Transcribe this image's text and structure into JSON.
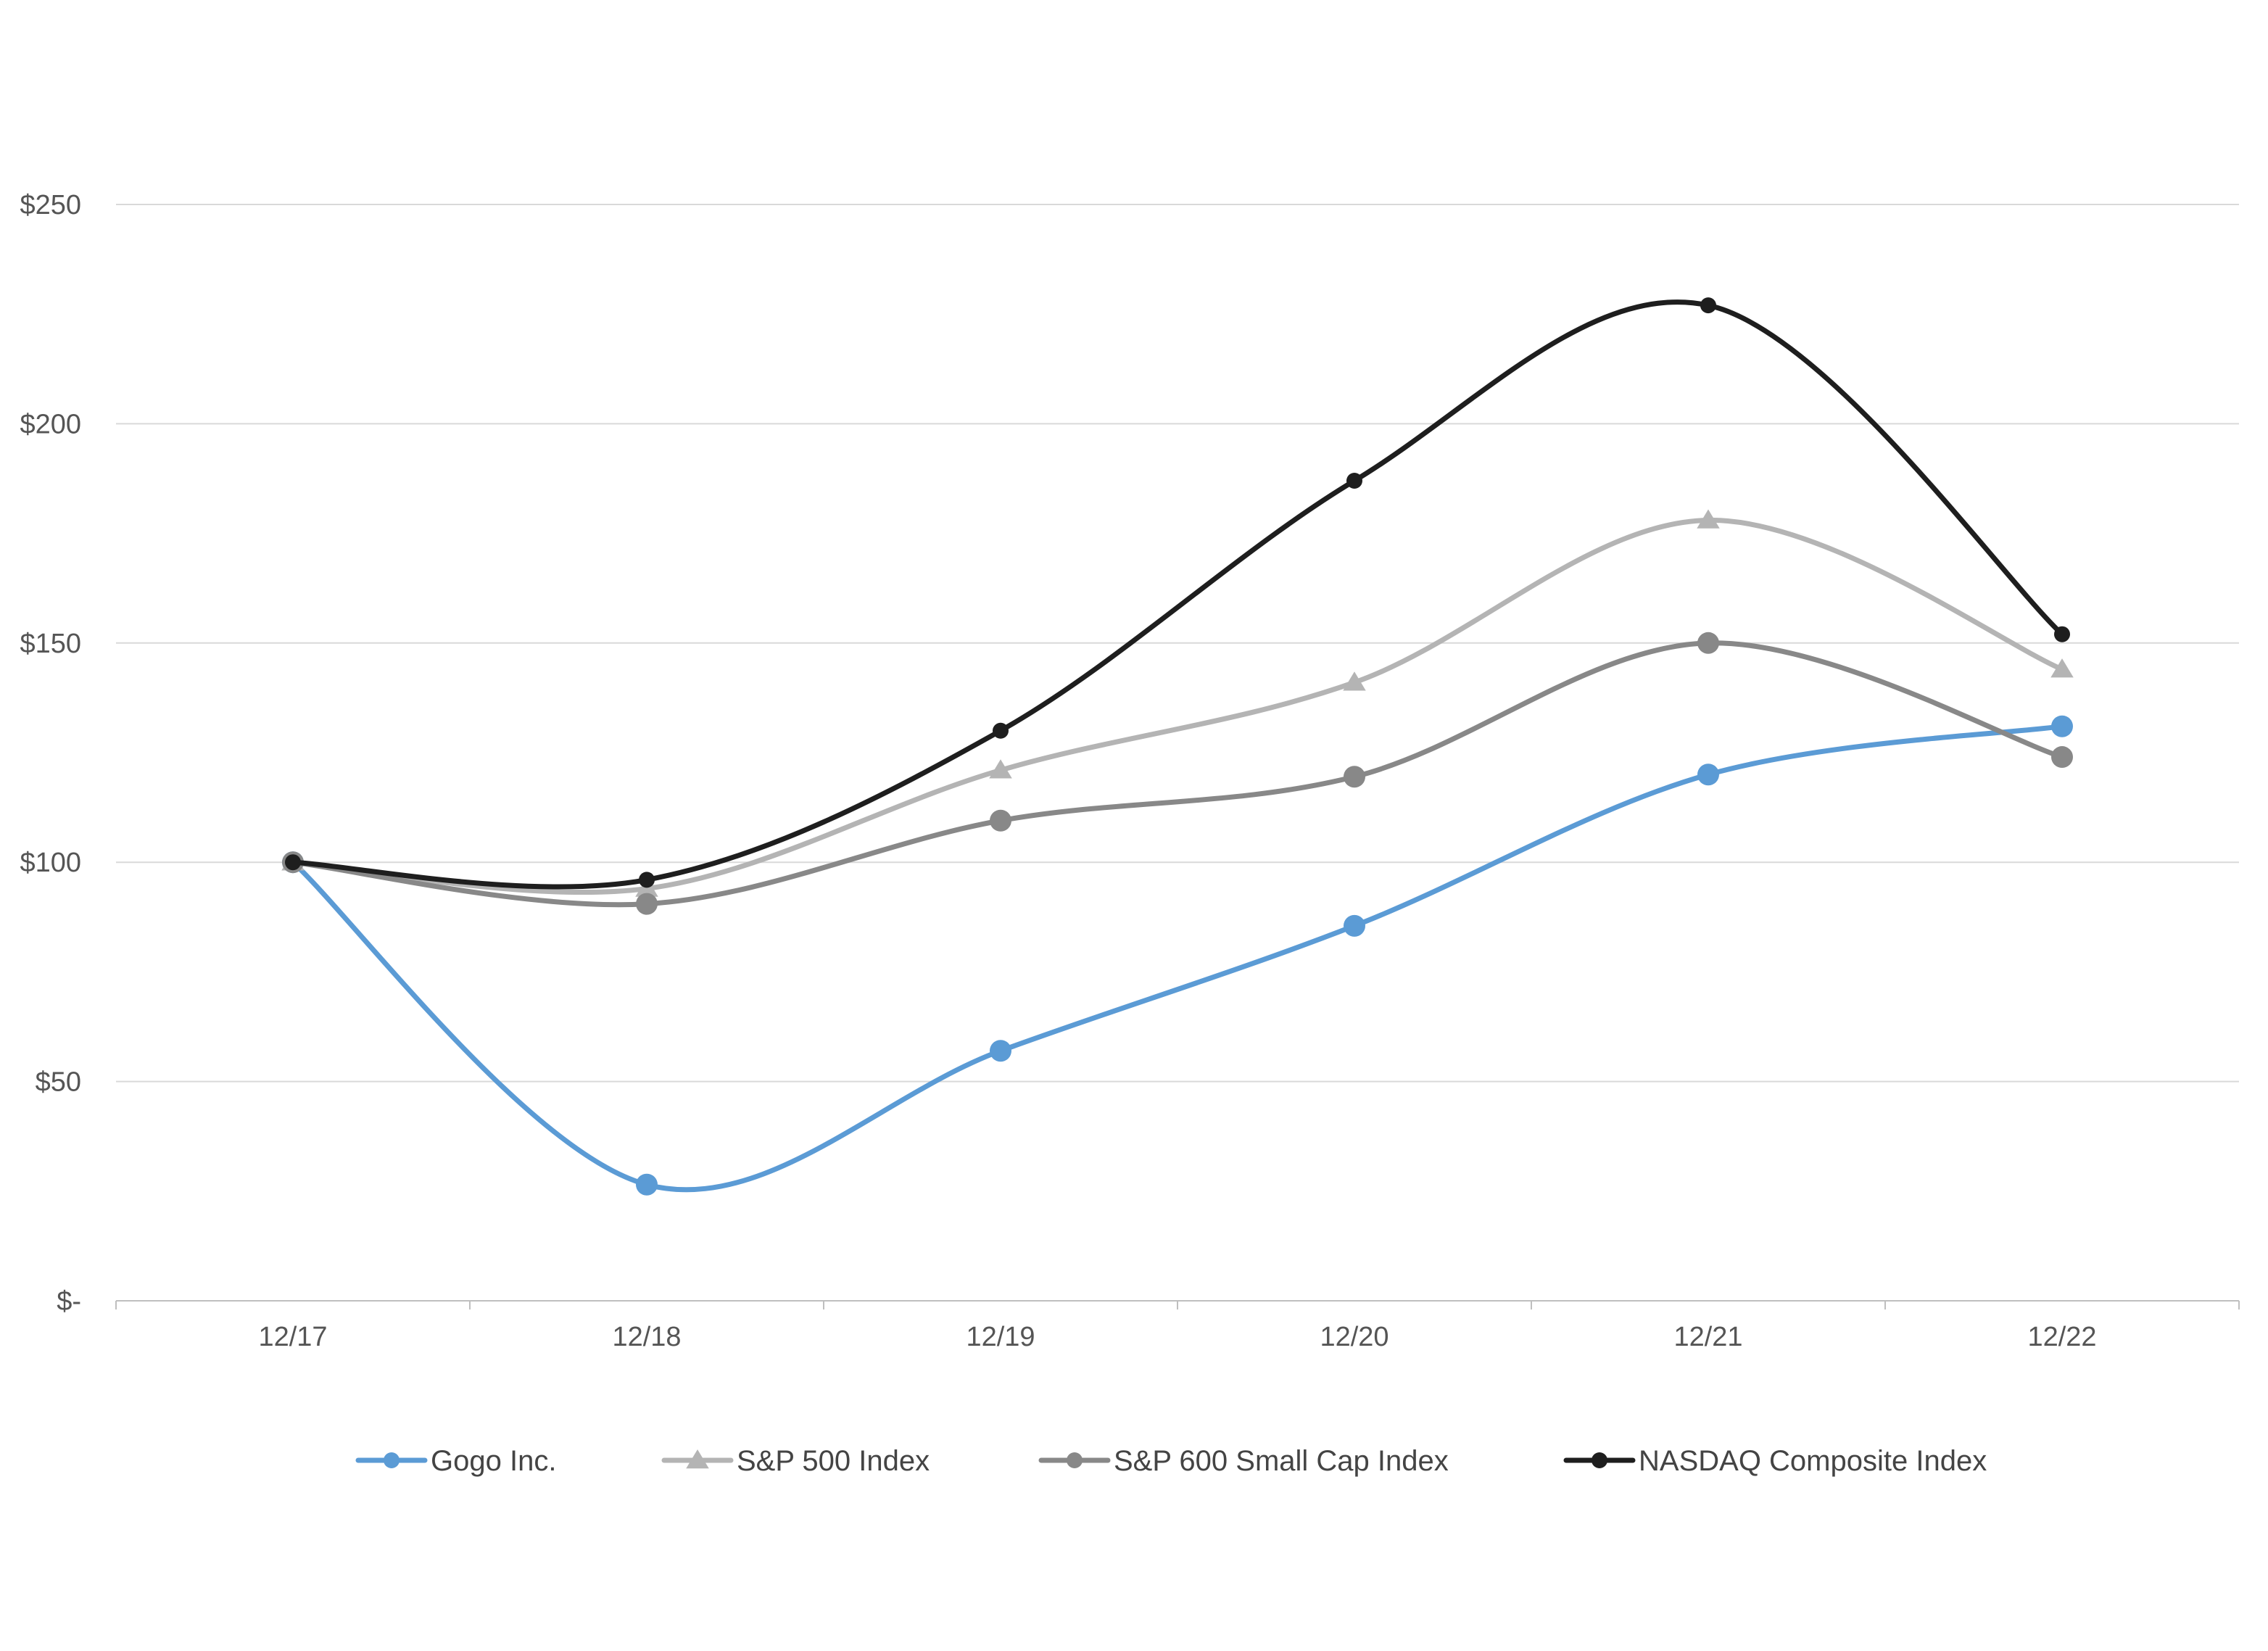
{
  "chart_data": {
    "type": "line",
    "categories": [
      "12/17",
      "12/18",
      "12/19",
      "12/20",
      "12/21",
      "12/22"
    ],
    "y_tick_labels": [
      "$-",
      "$50",
      "$100",
      "$150",
      "$200",
      "$250"
    ],
    "y_ticks": [
      0,
      50,
      100,
      150,
      200,
      250
    ],
    "ylim": [
      0,
      250
    ],
    "grid": true,
    "legend_position": "bottom",
    "series": [
      {
        "name": "Gogo Inc.",
        "values": [
          100,
          26.5,
          57,
          85.5,
          120,
          131
        ],
        "color": "#5b9bd5",
        "marker": "circle-large"
      },
      {
        "name": "S&P 500 Index",
        "values": [
          100,
          94,
          121,
          141,
          178,
          144
        ],
        "color": "#b4b4b4",
        "marker": "triangle"
      },
      {
        "name": "S&P 600 Small Cap Index",
        "values": [
          100,
          90.5,
          109.5,
          119.5,
          150,
          124
        ],
        "color": "#888888",
        "marker": "circle-large"
      },
      {
        "name": "NASDAQ Composite Index",
        "values": [
          100,
          96,
          130,
          187,
          227,
          152
        ],
        "color": "#1e1e1e",
        "marker": "circle-small"
      }
    ]
  }
}
